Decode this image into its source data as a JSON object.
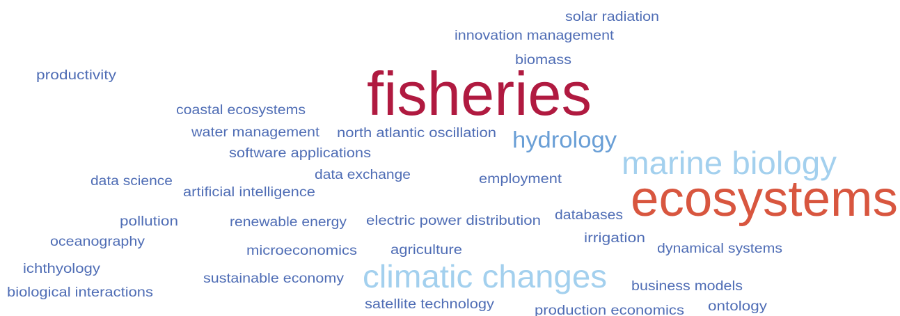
{
  "words": [
    {
      "text": "solar radiation",
      "color": "#4f6db5"
    },
    {
      "text": "innovation management",
      "color": "#4f6db5"
    },
    {
      "text": "biomass",
      "color": "#4f6db5"
    },
    {
      "text": "productivity",
      "color": "#4f6db5"
    },
    {
      "text": "fisheries",
      "color": "#b01a40"
    },
    {
      "text": "coastal ecosystems",
      "color": "#4f6db5"
    },
    {
      "text": "water management",
      "color": "#4f6db5"
    },
    {
      "text": "north atlantic oscillation",
      "color": "#4f6db5"
    },
    {
      "text": "hydrology",
      "color": "#6a9fd6"
    },
    {
      "text": "software applications",
      "color": "#4f6db5"
    },
    {
      "text": "marine biology",
      "color": "#a3d0ee"
    },
    {
      "text": "data exchange",
      "color": "#4f6db5"
    },
    {
      "text": "employment",
      "color": "#4f6db5"
    },
    {
      "text": "data science",
      "color": "#4f6db5"
    },
    {
      "text": "artificial intelligence",
      "color": "#4f6db5"
    },
    {
      "text": "ecosystems",
      "color": "#d8563f"
    },
    {
      "text": "pollution",
      "color": "#4f6db5"
    },
    {
      "text": "renewable energy",
      "color": "#4f6db5"
    },
    {
      "text": "electric power distribution",
      "color": "#4f6db5"
    },
    {
      "text": "databases",
      "color": "#4f6db5"
    },
    {
      "text": "irrigation",
      "color": "#4f6db5"
    },
    {
      "text": "oceanography",
      "color": "#4f6db5"
    },
    {
      "text": "microeconomics",
      "color": "#4f6db5"
    },
    {
      "text": "agriculture",
      "color": "#4f6db5"
    },
    {
      "text": "dynamical systems",
      "color": "#4f6db5"
    },
    {
      "text": "ichthyology",
      "color": "#4f6db5"
    },
    {
      "text": "sustainable economy",
      "color": "#4f6db5"
    },
    {
      "text": "climatic changes",
      "color": "#a3d0ee"
    },
    {
      "text": "business models",
      "color": "#4f6db5"
    },
    {
      "text": "biological interactions",
      "color": "#4f6db5"
    },
    {
      "text": "satellite technology",
      "color": "#4f6db5"
    },
    {
      "text": "ontology",
      "color": "#4f6db5"
    },
    {
      "text": "production economics",
      "color": "#4f6db5"
    }
  ]
}
